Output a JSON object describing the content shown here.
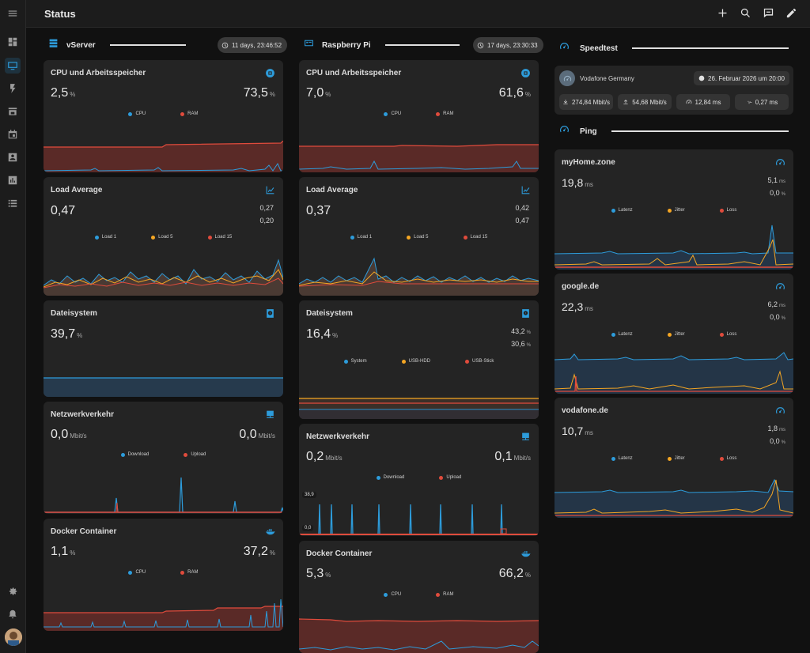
{
  "page": {
    "title": "Status"
  },
  "colors": {
    "cpu": "#2d9cdb",
    "ram": "#e04b3c",
    "load5": "#f5a623",
    "loss": "#e04b3c",
    "jitter": "#f5a623",
    "accent": "#2d9cdb"
  },
  "sidebar": {
    "items": [
      {
        "name": "menu-icon"
      },
      {
        "name": "dashboard-icon"
      },
      {
        "name": "monitor-icon",
        "active": true
      },
      {
        "name": "lightning-icon"
      },
      {
        "name": "store-icon"
      },
      {
        "name": "calendar-icon"
      },
      {
        "name": "account-box-icon"
      },
      {
        "name": "chart-box-icon"
      },
      {
        "name": "list-icon"
      },
      {
        "name": "gear-icon"
      },
      {
        "name": "bell-icon"
      }
    ]
  },
  "vserver": {
    "name": "vServer",
    "uptime": "11 days, 23:46:52",
    "cpu_ram": {
      "title": "CPU und Arbeitsspeicher",
      "cpu": "2,5",
      "cpu_unit": "%",
      "ram": "73,5",
      "ram_unit": "%",
      "legend": [
        "CPU",
        "RAM"
      ]
    },
    "load": {
      "title": "Load Average",
      "load1": "0,47",
      "load5": "0,27",
      "load15": "0,20",
      "legend": [
        "Load 1",
        "Load 5",
        "Load 15"
      ]
    },
    "fs": {
      "title": "Dateisystem",
      "value": "39,7",
      "unit": "%"
    },
    "net": {
      "title": "Netzwerkverkehr",
      "down": "0,0",
      "down_unit": "Mbit/s",
      "up": "0,0",
      "up_unit": "Mbit/s",
      "legend": [
        "Download",
        "Upload"
      ]
    },
    "docker": {
      "title": "Docker Container",
      "cpu": "1,1",
      "cpu_unit": "%",
      "ram": "37,2",
      "ram_unit": "%",
      "legend": [
        "CPU",
        "RAM"
      ]
    }
  },
  "raspi": {
    "name": "Raspberry Pi",
    "uptime": "17 days, 23:30:33",
    "cpu_ram": {
      "title": "CPU und Arbeitsspeicher",
      "cpu": "7,0",
      "cpu_unit": "%",
      "ram": "61,6",
      "ram_unit": "%",
      "legend": [
        "CPU",
        "RAM"
      ]
    },
    "load": {
      "title": "Load Average",
      "load1": "0,37",
      "load5": "0,42",
      "load15": "0,47",
      "legend": [
        "Load 1",
        "Load 5",
        "Load 15"
      ]
    },
    "fs": {
      "title": "Dateisystem",
      "system": "16,4",
      "system_unit": "%",
      "usb_hdd": "43,2",
      "usb_hdd_unit": "%",
      "usb_stick": "30,6",
      "usb_stick_unit": "%",
      "legend": [
        "System",
        "USB-HDD",
        "USB-Stick"
      ]
    },
    "net": {
      "title": "Netzwerkverkehr",
      "down": "0,2",
      "down_unit": "Mbit/s",
      "up": "0,1",
      "up_unit": "Mbit/s",
      "legend": [
        "Download",
        "Upload"
      ],
      "tag_max": "38,9",
      "tag_min": "0,0"
    },
    "docker": {
      "title": "Docker Container",
      "cpu": "5,3",
      "cpu_unit": "%",
      "ram": "66,2",
      "ram_unit": "%",
      "legend": [
        "CPU",
        "RAM"
      ]
    }
  },
  "speedtest": {
    "title": "Speedtest",
    "provider": "Vodafone Germany",
    "date": "26. Februar 2026 um 20:00",
    "download": "274,84 Mbit/s",
    "upload": "54,68 Mbit/s",
    "ping": "12,84 ms",
    "jitter": "0,27 ms"
  },
  "ping": {
    "title": "Ping",
    "hosts": [
      {
        "name": "myHome.zone",
        "latency": "19,8",
        "latency_unit": "ms",
        "jitter": "5,1",
        "jitter_unit": "ms",
        "loss": "0,0",
        "loss_unit": "%",
        "legend": [
          "Latenz",
          "Jitter",
          "Loss"
        ]
      },
      {
        "name": "google.de",
        "latency": "22,3",
        "latency_unit": "ms",
        "jitter": "6,2",
        "jitter_unit": "ms",
        "loss": "0,0",
        "loss_unit": "%",
        "legend": [
          "Latenz",
          "Jitter",
          "Loss"
        ]
      },
      {
        "name": "vodafone.de",
        "latency": "10,7",
        "latency_unit": "ms",
        "jitter": "1,8",
        "jitter_unit": "ms",
        "loss": "0,0",
        "loss_unit": "%",
        "legend": [
          "Latenz",
          "Jitter",
          "Loss"
        ]
      }
    ]
  }
}
